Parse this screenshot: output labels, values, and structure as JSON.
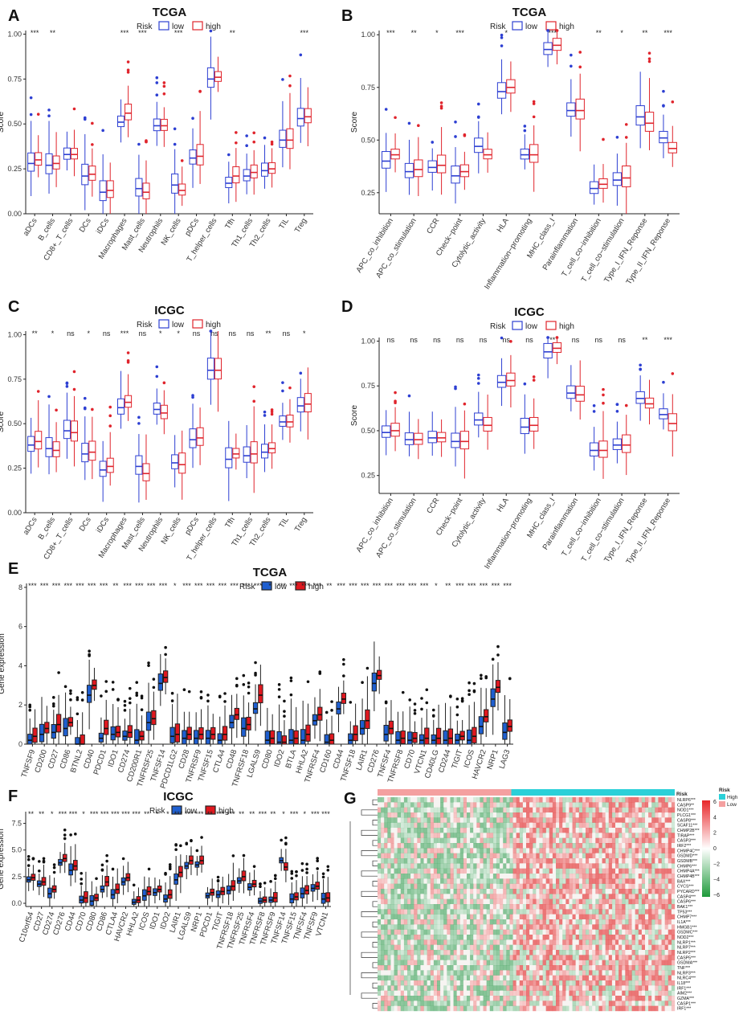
{
  "chart_data": [
    {
      "type": "box",
      "panel": "A",
      "title": "TCGA",
      "ylabel": "Score",
      "legend": {
        "title": "Risk",
        "entries": [
          "low",
          "high"
        ],
        "colors": [
          "#2d3fd2",
          "#e0242c"
        ]
      },
      "yticks": [
        "0.00",
        "0.25",
        "0.50",
        "0.75",
        "1.00"
      ],
      "ylim": [
        0,
        1.02
      ],
      "categories": [
        "aDCs",
        "B_cells",
        "CD8+_T_cells",
        "DCs",
        "iDCs",
        "Macrophages",
        "Mast_cells",
        "Neutrophils",
        "NK_cells",
        "pDCs",
        "T_helper_cells",
        "Tfh",
        "Th1_cells",
        "Th2_cells",
        "TIL",
        "Treg"
      ],
      "significance": [
        "***",
        "**",
        "",
        "",
        "",
        "***",
        "***",
        "",
        "***",
        "",
        "",
        "**",
        "",
        "",
        "",
        "***"
      ],
      "series": [
        {
          "name": "low",
          "medians": [
            0.28,
            0.27,
            0.33,
            0.21,
            0.12,
            0.51,
            0.14,
            0.49,
            0.16,
            0.31,
            0.75,
            0.17,
            0.21,
            0.24,
            0.41,
            0.53
          ]
        },
        {
          "name": "high",
          "medians": [
            0.3,
            0.28,
            0.33,
            0.22,
            0.13,
            0.56,
            0.12,
            0.49,
            0.13,
            0.32,
            0.76,
            0.21,
            0.23,
            0.25,
            0.41,
            0.54
          ]
        }
      ]
    },
    {
      "type": "box",
      "panel": "B",
      "title": "TCGA",
      "ylabel": "Score",
      "legend": {
        "title": "Risk",
        "entries": [
          "low",
          "high"
        ],
        "colors": [
          "#2d3fd2",
          "#e0242c"
        ]
      },
      "yticks": [
        "0.25",
        "0.50",
        "0.75",
        "1.00"
      ],
      "ylim": [
        0.15,
        1.02
      ],
      "categories": [
        "APC_co_inhibition",
        "APC_co_stimulation",
        "CCR",
        "Check−point",
        "Cytolytic_activity",
        "HLA",
        "Inflammation−promoting",
        "MHC_class_I",
        "Parainflammation",
        "T_cell_co−inhibition",
        "T_cell_co−stimulation",
        "Type_I_IFN_Reponse",
        "Type_II_IFN_Reponse"
      ],
      "significance": [
        "***",
        "**",
        "*",
        "***",
        "",
        "*",
        "",
        "***",
        "",
        "**",
        "*",
        "**",
        "***"
      ],
      "series": [
        {
          "name": "low",
          "medians": [
            0.4,
            0.35,
            0.37,
            0.33,
            0.47,
            0.73,
            0.43,
            0.93,
            0.64,
            0.27,
            0.31,
            0.61,
            0.51
          ]
        },
        {
          "name": "high",
          "medians": [
            0.43,
            0.36,
            0.38,
            0.35,
            0.43,
            0.75,
            0.43,
            0.95,
            0.64,
            0.29,
            0.32,
            0.58,
            0.46
          ]
        }
      ]
    },
    {
      "type": "box",
      "panel": "C",
      "title": "ICGC",
      "ylabel": "Score",
      "legend": {
        "title": "Risk",
        "entries": [
          "low",
          "high"
        ],
        "colors": [
          "#2d3fd2",
          "#e0242c"
        ]
      },
      "yticks": [
        "0.00",
        "0.25",
        "0.50",
        "0.75",
        "1.00"
      ],
      "ylim": [
        0,
        1.02
      ],
      "categories": [
        "aDCs",
        "B_cells",
        "CD8+_T_cells",
        "DCs",
        "iDCs",
        "Macrophages",
        "Mast_cells",
        "Neutrophils",
        "NK_cells",
        "pDCs",
        "T_helper_cells",
        "Tfh",
        "Th1_cells",
        "Th2_cells",
        "TIL",
        "Treg"
      ],
      "significance": [
        "**",
        "*",
        "ns",
        "*",
        "ns",
        "***",
        "ns",
        "*",
        "*",
        "ns",
        "ns",
        "ns",
        "ns",
        "**",
        "ns",
        "*"
      ],
      "series": [
        {
          "name": "low",
          "medians": [
            0.38,
            0.36,
            0.46,
            0.33,
            0.24,
            0.59,
            0.26,
            0.58,
            0.28,
            0.41,
            0.8,
            0.3,
            0.32,
            0.34,
            0.51,
            0.6
          ]
        },
        {
          "name": "high",
          "medians": [
            0.4,
            0.35,
            0.45,
            0.34,
            0.26,
            0.62,
            0.22,
            0.56,
            0.27,
            0.42,
            0.8,
            0.33,
            0.33,
            0.36,
            0.51,
            0.61
          ]
        }
      ]
    },
    {
      "type": "box",
      "panel": "D",
      "title": "ICGC",
      "ylabel": "Score",
      "legend": {
        "title": "Risk",
        "entries": [
          "low",
          "high"
        ],
        "colors": [
          "#2d3fd2",
          "#e0242c"
        ]
      },
      "yticks": [
        "0.25",
        "0.50",
        "0.75",
        "1.00"
      ],
      "ylim": [
        0.15,
        1.02
      ],
      "categories": [
        "APC_co_inhibition",
        "APC_co_stimulation",
        "CCR",
        "Check−point",
        "Cytolytic_activity",
        "HLA",
        "Inflammation−promoting",
        "MHC_class_I",
        "Parainflammation",
        "T_cell_co−inhibition",
        "T_cell_co−stimulation",
        "Type_I_IFN_Reponse",
        "Type_II_IFN_Reponse"
      ],
      "significance": [
        "ns",
        "ns",
        "ns",
        "ns",
        "ns",
        "ns",
        "ns",
        "**",
        "ns",
        "ns",
        "ns",
        "**",
        "***"
      ],
      "series": [
        {
          "name": "low",
          "medians": [
            0.49,
            0.45,
            0.46,
            0.44,
            0.56,
            0.77,
            0.52,
            0.94,
            0.71,
            0.39,
            0.42,
            0.68,
            0.59
          ]
        },
        {
          "name": "high",
          "medians": [
            0.5,
            0.45,
            0.46,
            0.44,
            0.53,
            0.78,
            0.53,
            0.96,
            0.7,
            0.39,
            0.42,
            0.65,
            0.54
          ]
        }
      ]
    },
    {
      "type": "box",
      "panel": "E",
      "title": "TCGA",
      "ylabel": "Gene expression",
      "legend": {
        "title": "Risk",
        "entries": [
          "low",
          "high"
        ],
        "colors": [
          "#1f5fd0",
          "#e0181f"
        ]
      },
      "yticks": [
        "0",
        "2",
        "4",
        "6",
        "8"
      ],
      "ylim": [
        0,
        8.2
      ],
      "categories": [
        "TNFSF9",
        "CD200",
        "CD27",
        "CD86",
        "BTNL2",
        "CD40",
        "PDCD1",
        "IDO1",
        "CD274",
        "CD200R1",
        "TNFRSF25",
        "TNFSF14",
        "PDCD1LG2",
        "CD28",
        "TNFRSF9",
        "TNFSF15",
        "CTLA4",
        "CD48",
        "TNFRSF18",
        "LGALS9",
        "CD80",
        "IDO2",
        "BTLA",
        "HHLA2",
        "TNFRSF4",
        "CD160",
        "CD44",
        "TNFSF18",
        "LAIR1",
        "CD276",
        "TNFSF4",
        "TNFRSF8",
        "CD70",
        "VTCN1",
        "CD40LG",
        "CD244",
        "TIGIT",
        "ICOS",
        "HAVCR2",
        "NRP1",
        "LAG3"
      ],
      "significance": [
        "***",
        "***",
        "***",
        "***",
        "***",
        "***",
        "***",
        "**",
        "***",
        "***",
        "***",
        "***",
        "*",
        "***",
        "***",
        "***",
        "***",
        "***",
        "***",
        "***",
        "*",
        "***",
        "***",
        "***",
        "***",
        "**",
        "***",
        "***",
        "***",
        "***",
        "***",
        "***",
        "***",
        "***",
        "*",
        "**",
        "***",
        "***",
        "***",
        "***",
        "***"
      ],
      "series": [
        {
          "name": "low",
          "medians": [
            0.2,
            0.5,
            0.6,
            0.8,
            0.0,
            2.5,
            0.3,
            0.5,
            0.4,
            0.2,
            1.1,
            3.1,
            0.4,
            0.3,
            0.3,
            0.3,
            0.2,
            1.1,
            0.8,
            1.8,
            0.2,
            0.1,
            0.2,
            0.2,
            1.2,
            0.1,
            1.8,
            0.2,
            0.8,
            3.1,
            0.5,
            0.2,
            0.2,
            0.2,
            0.2,
            0.2,
            0.2,
            0.2,
            0.9,
            2.3,
            0.6
          ]
        },
        {
          "name": "high",
          "medians": [
            0.4,
            0.8,
            1.0,
            1.1,
            0.0,
            3.0,
            0.8,
            0.6,
            0.6,
            0.4,
            1.3,
            3.4,
            0.5,
            0.5,
            0.5,
            0.5,
            0.5,
            1.5,
            1.0,
            2.5,
            0.3,
            0.1,
            0.3,
            0.5,
            1.5,
            0.2,
            2.3,
            0.5,
            1.2,
            3.5,
            0.8,
            0.3,
            0.3,
            0.3,
            0.3,
            0.3,
            0.4,
            0.4,
            1.4,
            2.9,
            0.9
          ]
        }
      ]
    },
    {
      "type": "box",
      "panel": "F",
      "title": "ICGC",
      "ylabel": "Gene expression",
      "legend": {
        "title": "Risk",
        "entries": [
          "low",
          "high"
        ],
        "colors": [
          "#1f5fd0",
          "#e0181f"
        ]
      },
      "yticks": [
        "0.0",
        "2.5",
        "5.0",
        "7.5"
      ],
      "ylim": [
        -0.3,
        8.6
      ],
      "categories": [
        "C10orf54",
        "CD27",
        "CD274",
        "CD276",
        "CD44",
        "CD70",
        "CD80",
        "CD86",
        "CTLA4",
        "HAVCR2",
        "HHLA2",
        "ICOS",
        "IDO1",
        "IDO2",
        "LAIR1",
        "LGALS9",
        "NRP1",
        "PDCD1",
        "TIGIT",
        "TNFRSF18",
        "TNFRSF25",
        "TNFRSF4",
        "TNFRSF8",
        "TNFRSF9",
        "TNFSF14",
        "TNFSF15",
        "TNFSF4",
        "TNFSF9",
        "VTCN1"
      ],
      "significance": [
        "**",
        "**",
        "*",
        "***",
        "***",
        "*",
        "***",
        "***",
        "***",
        "***",
        "***",
        "**",
        "*",
        "*",
        "***",
        "***",
        "***",
        "**",
        "***",
        "***",
        "**",
        "**",
        "***",
        "**",
        "*",
        "***",
        "*",
        "***",
        "***"
      ],
      "series": [
        {
          "name": "low",
          "medians": [
            2.2,
            1.8,
            0.9,
            3.8,
            3.1,
            0.3,
            0.2,
            1.3,
            0.8,
            2.0,
            0.1,
            0.7,
            1.0,
            0.4,
            2.2,
            3.5,
            3.6,
            0.7,
            0.8,
            1.2,
            2.1,
            1.5,
            0.2,
            0.3,
            4.0,
            0.4,
            0.9,
            1.4,
            0.4
          ]
        },
        {
          "name": "high",
          "medians": [
            2.4,
            2.0,
            1.3,
            4.2,
            3.5,
            0.5,
            0.5,
            2.0,
            1.3,
            2.4,
            0.3,
            1.1,
            1.3,
            0.8,
            2.9,
            4.0,
            4.0,
            1.0,
            1.1,
            1.6,
            2.5,
            1.8,
            0.3,
            0.5,
            3.4,
            0.6,
            1.2,
            1.6,
            0.5
          ]
        }
      ]
    },
    {
      "type": "heatmap",
      "panel": "G",
      "legend_risk": {
        "title": "Risk",
        "entries": [
          "High",
          "Low"
        ],
        "colors": [
          "#2bd0d8",
          "#f4a0a0"
        ]
      },
      "color_scale_ticks": [
        "6",
        "4",
        "2",
        "0",
        "−2",
        "−4",
        "−6"
      ],
      "color_scale_colors": [
        "#e8272a",
        "#ffffff",
        "#1e9a3a"
      ],
      "columns_groups": [
        {
          "name": "Low",
          "fraction": 0.45
        },
        {
          "name": "High",
          "fraction": 0.55
        }
      ],
      "rows": [
        "NLRP6***",
        "CASP9**",
        "NOD1***",
        "PLCG1***",
        "CASP8***",
        "SCAF11***",
        "CHMP2B***",
        "TIRAP***",
        "CASP3***",
        "IRF2***",
        "CHMP4C***",
        "GSDMD***",
        "GSDMB***",
        "CHMP6***",
        "CHMP4A***",
        "CHMP4B***",
        "BAX***",
        "CYCS***",
        "PYCARD***",
        "CASP4***",
        "CASP6***",
        "BAK1***",
        "TP53***",
        "CHMP7***",
        "IL1A***",
        "HMGB1***",
        "GSDMC***",
        "NOD2***",
        "NLRP1***",
        "NLRP7***",
        "NLRP2***",
        "CASP5***",
        "GSDMA***",
        "TNF***",
        "NLRP3***",
        "NLRC4***",
        "IL18***",
        "IRF1***",
        "AIM2***",
        "GZMA***",
        "CASP1***",
        "IRF1***"
      ]
    }
  ],
  "panel_labels": [
    "A",
    "B",
    "C",
    "D",
    "E",
    "F",
    "G"
  ]
}
